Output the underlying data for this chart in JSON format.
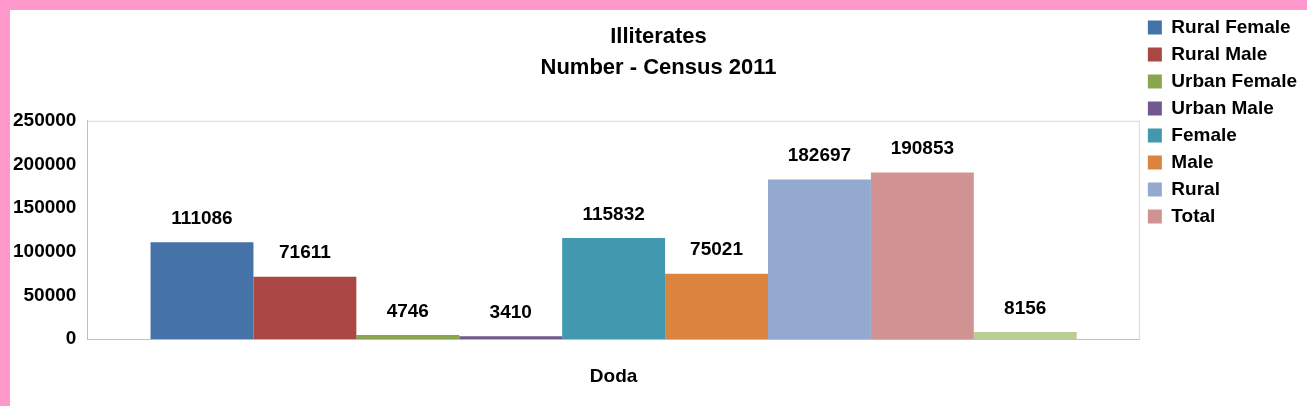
{
  "chart_data": {
    "type": "bar",
    "title": "Illiterates",
    "subtitle": "Number - Census 2011",
    "categories": [
      "Doda"
    ],
    "series": [
      {
        "name": "Rural Female",
        "color": "#4572a7",
        "values": [
          111086
        ]
      },
      {
        "name": "Rural Male",
        "color": "#aa4643",
        "values": [
          71611
        ]
      },
      {
        "name": "Urban Female",
        "color": "#89a54e",
        "values": [
          4746
        ]
      },
      {
        "name": "Urban Male",
        "color": "#71588f",
        "values": [
          3410
        ]
      },
      {
        "name": "Female",
        "color": "#4198af",
        "values": [
          115832
        ]
      },
      {
        "name": "Male",
        "color": "#db843d",
        "values": [
          75021
        ]
      },
      {
        "name": "Rural",
        "color": "#93a9cf",
        "values": [
          182697
        ]
      },
      {
        "name": "Total",
        "color": "#d19392",
        "values": [
          190853
        ]
      },
      {
        "color": "#b9cd96",
        "values": [
          8156
        ]
      }
    ],
    "ylim": [
      0,
      250000
    ],
    "yticks": [
      0,
      50000,
      100000,
      150000,
      200000,
      250000
    ],
    "grid": false,
    "legend": "top right",
    "data_labels": true
  }
}
